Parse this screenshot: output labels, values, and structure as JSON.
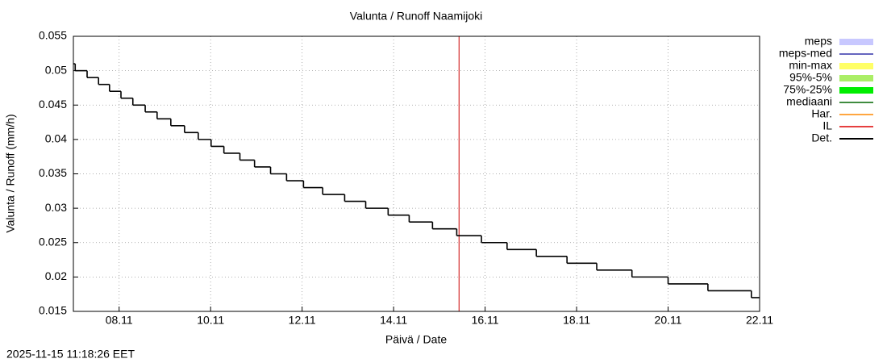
{
  "chart_data": {
    "type": "step",
    "title": "Valunta / Runoff  Naamijoki",
    "y_label": "Valunta / Runoff (mm/h)",
    "x_label": "Päivä / Date",
    "timestamp": "2025-11-15 11:18:26 EET",
    "xlim": [
      7,
      22
    ],
    "ylim": [
      0.015,
      0.055
    ],
    "xticks": [
      {
        "value": 8,
        "label": "08.11"
      },
      {
        "value": 10,
        "label": "10.11"
      },
      {
        "value": 12,
        "label": "12.11"
      },
      {
        "value": 14,
        "label": "14.11"
      },
      {
        "value": 16,
        "label": "16.11"
      },
      {
        "value": 18,
        "label": "18.11"
      },
      {
        "value": 20,
        "label": "20.11"
      },
      {
        "value": 22,
        "label": "22.11"
      }
    ],
    "yticks": [
      0.015,
      0.02,
      0.025,
      0.03,
      0.035,
      0.04,
      0.045,
      0.05,
      0.055
    ],
    "grid": true,
    "forecast_start": {
      "x": 15.43,
      "color": "#cc0000"
    },
    "legend": [
      {
        "name": "meps",
        "color": "#c8c8ff",
        "width": 8
      },
      {
        "name": "meps-med",
        "color": "#3333aa",
        "width": 1.5
      },
      {
        "name": "min-max",
        "color": "#ffff66",
        "width": 8
      },
      {
        "name": "95%-5%",
        "color": "#aaee66",
        "width": 8
      },
      {
        "name": "75%-25%",
        "color": "#00ee00",
        "width": 8
      },
      {
        "name": "mediaani",
        "color": "#006600",
        "width": 1.5
      },
      {
        "name": "Har.",
        "color": "#ff8800",
        "width": 1.5
      },
      {
        "name": "IL",
        "color": "#dd0000",
        "width": 1.5
      },
      {
        "name": "Det.",
        "color": "#000000",
        "width": 2
      }
    ],
    "series": [
      {
        "name": "Det.",
        "color": "#000000",
        "x": [
          7,
          7.04,
          7.3,
          7.55,
          7.79,
          8.04,
          8.3,
          8.57,
          8.83,
          9.13,
          9.43,
          9.73,
          10.01,
          10.29,
          10.64,
          10.96,
          11.31,
          11.66,
          12.03,
          12.45,
          12.93,
          13.39,
          13.88,
          14.34,
          14.85,
          15.38,
          15.92,
          16.48,
          17.12,
          17.79,
          18.44,
          19.21,
          20.0,
          20.87,
          21.82,
          22
        ],
        "values": [
          0.051,
          0.05,
          0.049,
          0.048,
          0.047,
          0.046,
          0.045,
          0.044,
          0.043,
          0.042,
          0.041,
          0.04,
          0.039,
          0.038,
          0.037,
          0.036,
          0.035,
          0.034,
          0.033,
          0.032,
          0.031,
          0.03,
          0.029,
          0.028,
          0.027,
          0.026,
          0.025,
          0.024,
          0.023,
          0.022,
          0.021,
          0.02,
          0.019,
          0.018,
          0.017,
          0.017
        ]
      }
    ]
  }
}
